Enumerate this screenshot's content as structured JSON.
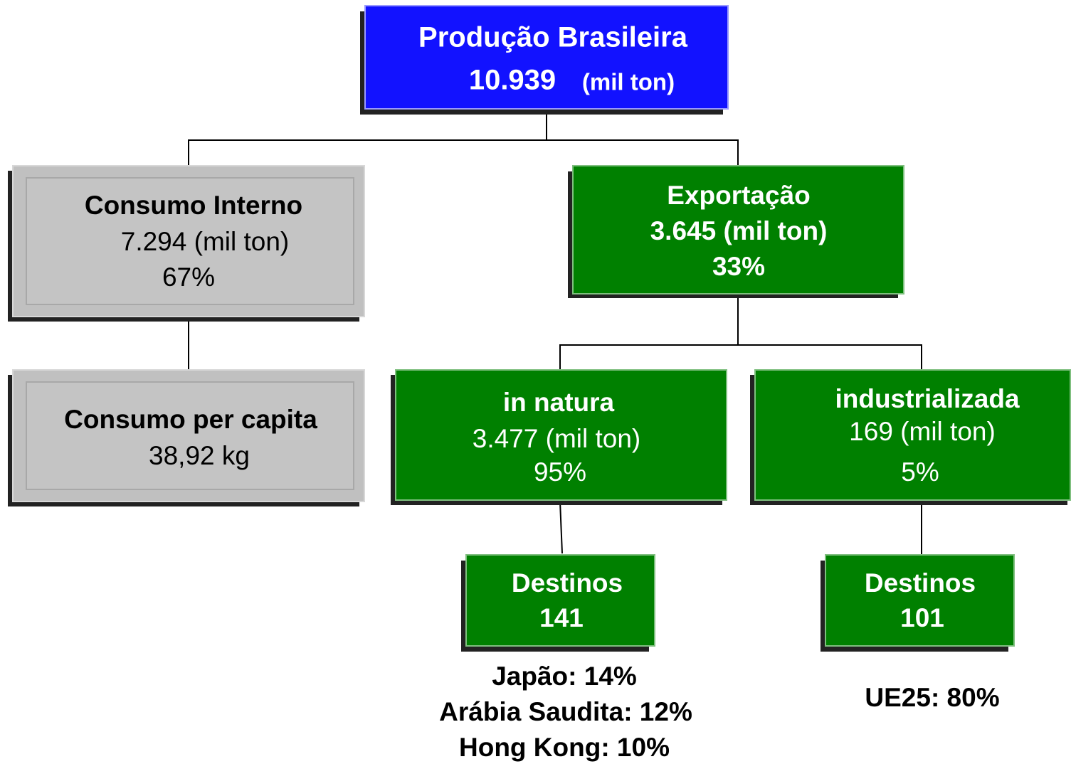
{
  "nodes": [
    {
      "lines": [
        "Produção Brasileira",
        "10.939",
        "(mil ton)"
      ]
    },
    {
      "lines": [
        "Consumo Interno",
        "7.294 (mil ton)",
        "67%"
      ]
    },
    {
      "lines": [
        "Exportação",
        "3.645 (mil ton)",
        "33%"
      ]
    },
    {
      "lines": [
        "Consumo per capita",
        "38,92 kg"
      ]
    },
    {
      "lines": [
        "in natura",
        "3.477 (mil ton)",
        "95%"
      ]
    },
    {
      "lines": [
        "industrializada",
        "169 (mil ton)",
        "5%"
      ]
    },
    {
      "lines": [
        "Destinos",
        "141"
      ]
    },
    {
      "lines": [
        "Destinos",
        "101"
      ]
    }
  ],
  "notes": [
    [
      "Japão: 14%",
      "Arábia Saudita: 12%",
      "Hong Kong: 10%"
    ],
    [
      "UE25: 80%"
    ]
  ]
}
